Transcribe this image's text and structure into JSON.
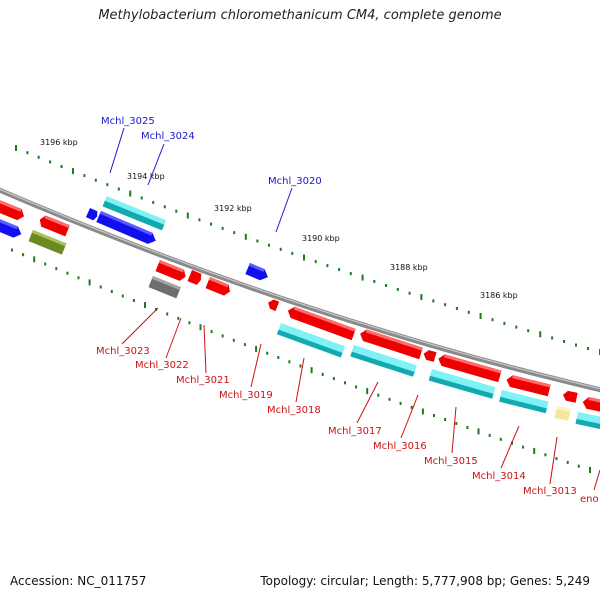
{
  "title": "Methylobacterium chloromethanicum CM4, complete genome",
  "footer": {
    "accession": "Accession: NC_011757",
    "summary": "Topology: circular; Length: 5,777,908 bp; Genes: 5,249"
  },
  "colors": {
    "backbone": "#8a8a8a",
    "tick": "#1f7a1f",
    "label_blue": "#1a1acc",
    "label_red": "#cc1111",
    "gene_red": "#ee0000",
    "gene_blue": "#1010ee",
    "gene_cyan": "#19e0e8",
    "gene_gray": "#6e6e6e",
    "gene_olive": "#6b8a22",
    "gene_yellow": "#f3e89a"
  },
  "scale": {
    "ticks": [
      "3196 kbp",
      "3194 kbp",
      "3192 kbp",
      "3190 kbp",
      "3188 kbp",
      "3186 kbp"
    ]
  },
  "gene_labels": [
    {
      "name": "Mchl_3025",
      "color": "blue"
    },
    {
      "name": "Mchl_3024",
      "color": "blue"
    },
    {
      "name": "Mchl_3020",
      "color": "blue"
    },
    {
      "name": "Mchl_3023",
      "color": "red"
    },
    {
      "name": "Mchl_3022",
      "color": "red"
    },
    {
      "name": "Mchl_3021",
      "color": "red"
    },
    {
      "name": "Mchl_3019",
      "color": "red"
    },
    {
      "name": "Mchl_3018",
      "color": "red"
    },
    {
      "name": "Mchl_3017",
      "color": "red"
    },
    {
      "name": "Mchl_3016",
      "color": "red"
    },
    {
      "name": "Mchl_3015",
      "color": "red"
    },
    {
      "name": "Mchl_3014",
      "color": "red"
    },
    {
      "name": "Mchl_3013",
      "color": "red"
    },
    {
      "name": "eno",
      "color": "red"
    }
  ]
}
